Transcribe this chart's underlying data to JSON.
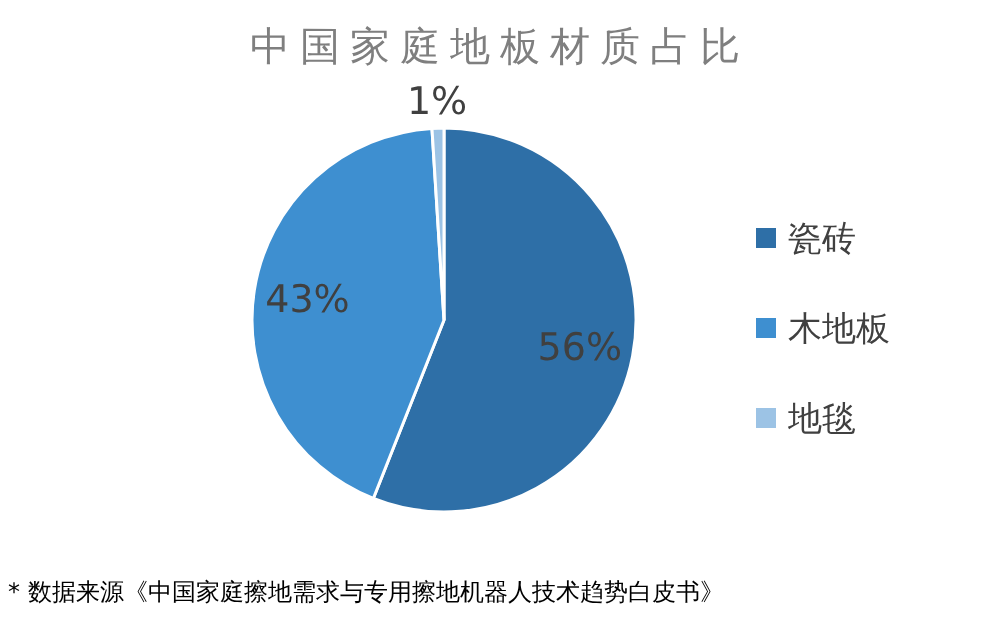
{
  "chart_data": {
    "type": "pie",
    "title": "中国家庭地板材质占比",
    "categories": [
      "瓷砖",
      "木地板",
      "地毯"
    ],
    "values": [
      56,
      43,
      1
    ],
    "colors": [
      "#2e6fa7",
      "#3e8fd0",
      "#9cc3e5"
    ],
    "value_labels": [
      "56%",
      "43%",
      "1%"
    ],
    "legend": "right",
    "annotations": [
      "* 数据来源《中国家庭擦地需求与专用擦地机器人技术趋势白皮书》"
    ]
  }
}
